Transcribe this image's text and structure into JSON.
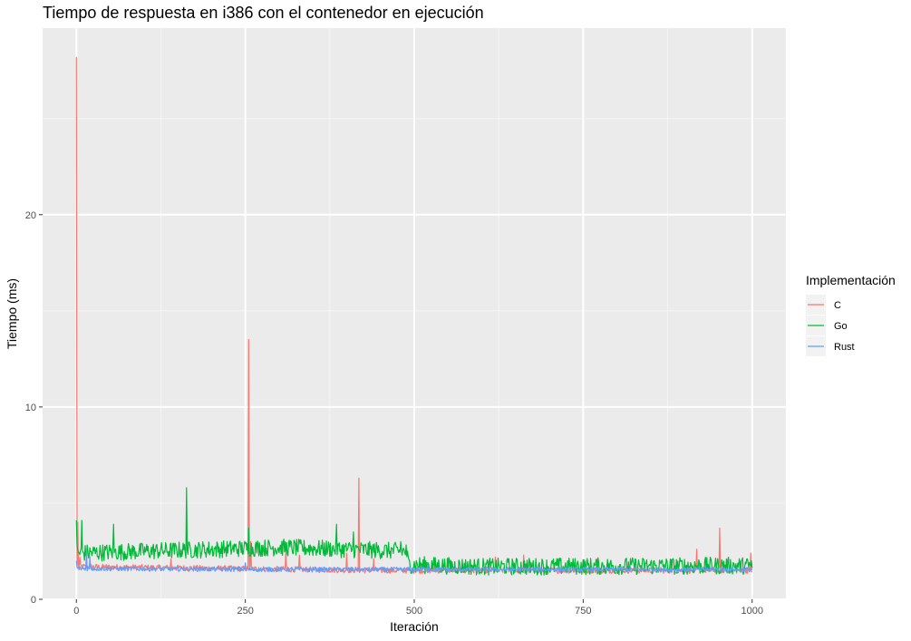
{
  "chart_data": {
    "type": "line",
    "title": "Tiempo de respuesta en i386 con el contenedor en ejecución",
    "xlabel": "Iteración",
    "ylabel": "Tiempo (ms)",
    "xlim": [
      -50,
      1050
    ],
    "ylim": [
      0,
      29.7
    ],
    "x_ticks": [
      0,
      250,
      500,
      750,
      1000
    ],
    "x_tick_labels": [
      "0",
      "250",
      "500",
      "750",
      "1000"
    ],
    "y_ticks": [
      0,
      10,
      20
    ],
    "y_tick_labels": [
      "0",
      "10",
      "20"
    ],
    "grid": true,
    "legend": {
      "title": "Implementación",
      "position": "right"
    },
    "panel_background": "#ebebeb",
    "series": [
      {
        "name": "C",
        "color": "#f8766d",
        "baseline": [
          [
            0,
            1.7
          ],
          [
            450,
            1.5
          ],
          [
            500,
            1.5
          ],
          [
            1000,
            1.5
          ]
        ],
        "noise": 0.15,
        "spikes": [
          [
            0,
            28.2
          ],
          [
            2,
            4.0
          ],
          [
            5,
            2.2
          ],
          [
            140,
            2.1
          ],
          [
            255,
            13.5
          ],
          [
            258,
            3.0
          ],
          [
            310,
            2.6
          ],
          [
            330,
            2.3
          ],
          [
            400,
            2.4
          ],
          [
            418,
            6.3
          ],
          [
            440,
            2.1
          ],
          [
            620,
            2.2
          ],
          [
            662,
            2.3
          ],
          [
            770,
            2.1
          ],
          [
            880,
            2.0
          ],
          [
            918,
            2.6
          ],
          [
            952,
            3.7
          ],
          [
            998,
            2.4
          ]
        ]
      },
      {
        "name": "Go",
        "color": "#00ba38",
        "baseline": [
          [
            0,
            2.4
          ],
          [
            100,
            2.5
          ],
          [
            200,
            2.6
          ],
          [
            300,
            2.7
          ],
          [
            400,
            2.6
          ],
          [
            488,
            2.5
          ],
          [
            492,
            1.8
          ],
          [
            600,
            1.7
          ],
          [
            1000,
            1.75
          ]
        ],
        "noise": 0.45,
        "spikes": [
          [
            0,
            4.1
          ],
          [
            8,
            4.1
          ],
          [
            55,
            3.9
          ],
          [
            163,
            5.8
          ],
          [
            255,
            3.7
          ],
          [
            385,
            3.9
          ],
          [
            410,
            3.5
          ],
          [
            480,
            3.0
          ]
        ]
      },
      {
        "name": "Rust",
        "color": "#619cff",
        "baseline": [
          [
            0,
            1.6
          ],
          [
            300,
            1.55
          ],
          [
            500,
            1.55
          ],
          [
            1000,
            1.55
          ]
        ],
        "noise": 0.12,
        "spikes": [
          [
            0,
            2.0
          ],
          [
            15,
            2.5
          ],
          [
            20,
            2.2
          ],
          [
            250,
            1.9
          ],
          [
            520,
            1.8
          ]
        ]
      }
    ]
  }
}
